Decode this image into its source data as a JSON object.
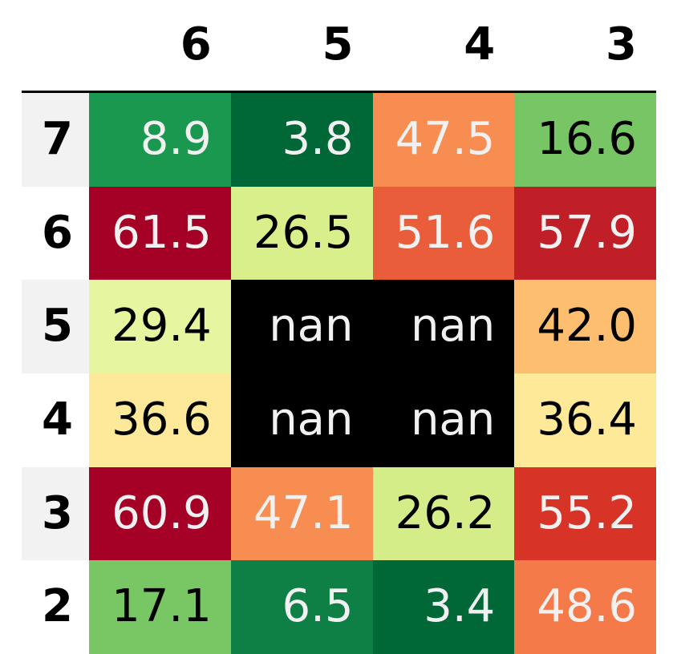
{
  "chart_data": {
    "type": "heatmap",
    "colormap": "RdYlGn_r",
    "missing_color": "#000000",
    "banded_rows": true,
    "band_color": "#f2f2f2",
    "columns": [
      "6",
      "5",
      "4",
      "3"
    ],
    "rows": [
      "7",
      "6",
      "5",
      "4",
      "3",
      "2"
    ],
    "values": [
      [
        8.9,
        3.8,
        47.5,
        16.6
      ],
      [
        61.5,
        26.5,
        51.6,
        57.9
      ],
      [
        29.4,
        null,
        null,
        42.0
      ],
      [
        36.6,
        null,
        null,
        36.4
      ],
      [
        60.9,
        47.1,
        26.2,
        55.2
      ],
      [
        17.1,
        6.5,
        3.4,
        48.6
      ]
    ],
    "labels": [
      [
        "8.9",
        "3.8",
        "47.5",
        "16.6"
      ],
      [
        "61.5",
        "26.5",
        "51.6",
        "57.9"
      ],
      [
        "29.4",
        "nan",
        "nan",
        "42.0"
      ],
      [
        "36.6",
        "nan",
        "nan",
        "36.4"
      ],
      [
        "60.9",
        "47.1",
        "26.2",
        "55.2"
      ],
      [
        "17.1",
        "6.5",
        "3.4",
        "48.6"
      ]
    ],
    "cell_colors": [
      [
        "#1a9850",
        "#006837",
        "#f88d52",
        "#78c565"
      ],
      [
        "#a50026",
        "#d9ef8b",
        "#e95d3a",
        "#c01f27"
      ],
      [
        "#e6f5a0",
        "#000000",
        "#000000",
        "#fdbf6f"
      ],
      [
        "#fee899",
        "#000000",
        "#000000",
        "#fee999"
      ],
      [
        "#a50026",
        "#f88d52",
        "#d5ed88",
        "#d83327"
      ],
      [
        "#79c665",
        "#0e8045",
        "#006837",
        "#f57a49"
      ]
    ],
    "text_colors": [
      [
        "#f1f1f1",
        "#f1f1f1",
        "#f1f1f1",
        "#000000"
      ],
      [
        "#f1f1f1",
        "#000000",
        "#f1f1f1",
        "#f1f1f1"
      ],
      [
        "#000000",
        "#f1f1f1",
        "#f1f1f1",
        "#000000"
      ],
      [
        "#000000",
        "#f1f1f1",
        "#f1f1f1",
        "#000000"
      ],
      [
        "#f1f1f1",
        "#f1f1f1",
        "#000000",
        "#f1f1f1"
      ],
      [
        "#000000",
        "#f1f1f1",
        "#f1f1f1",
        "#f1f1f1"
      ]
    ]
  }
}
